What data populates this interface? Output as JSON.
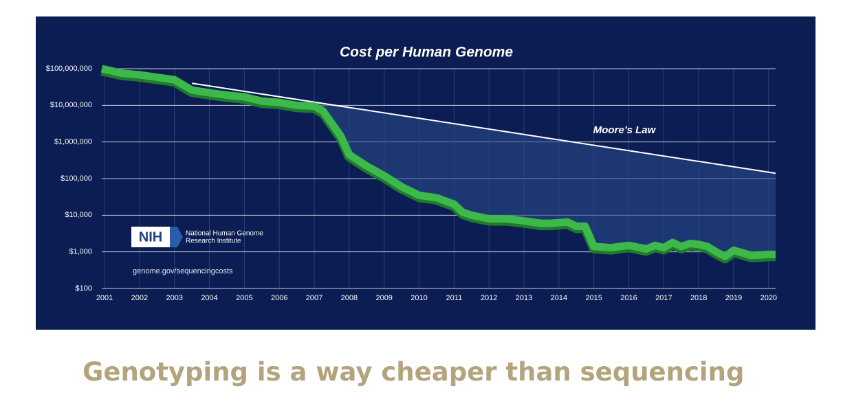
{
  "chart_data": {
    "type": "line",
    "title": "Cost per Human Genome",
    "log_scale": true,
    "grid": true,
    "background": "#0b1d52",
    "xlim": [
      2000.92,
      2020.2
    ],
    "xticks": [
      2001,
      2002,
      2003,
      2004,
      2005,
      2006,
      2007,
      2008,
      2009,
      2010,
      2011,
      2012,
      2013,
      2014,
      2015,
      2016,
      2017,
      2018,
      2019,
      2020
    ],
    "ylim": [
      100,
      100000000
    ],
    "yticks": [
      {
        "value": 100,
        "label": "$100"
      },
      {
        "value": 1000,
        "label": "$1,000"
      },
      {
        "value": 10000,
        "label": "$10,000"
      },
      {
        "value": 100000,
        "label": "$100,000"
      },
      {
        "value": 1000000,
        "label": "$1,000,000"
      },
      {
        "value": 10000000,
        "label": "$10,000,000"
      },
      {
        "value": 100000000,
        "label": "$100,000,000"
      }
    ],
    "series": [
      {
        "name": "Cost per Human Genome",
        "color": "#3cb94a",
        "x": [
          2000.92,
          2001.5,
          2002.0,
          2002.5,
          2003.0,
          2003.5,
          2004.0,
          2004.5,
          2005.0,
          2005.5,
          2006.0,
          2006.5,
          2007.0,
          2007.25,
          2007.75,
          2008.0,
          2008.5,
          2009.0,
          2009.5,
          2010.0,
          2010.5,
          2011.0,
          2011.25,
          2011.5,
          2012.0,
          2012.5,
          2013.0,
          2013.5,
          2013.75,
          2014.25,
          2014.5,
          2014.75,
          2015.0,
          2015.5,
          2016.0,
          2016.5,
          2016.75,
          2017.0,
          2017.25,
          2017.5,
          2017.75,
          2018.0,
          2018.25,
          2018.5,
          2018.75,
          2019.0,
          2019.5,
          2020.0,
          2020.2
        ],
        "values": [
          100000000,
          75000000,
          68000000,
          58000000,
          50000000,
          26000000,
          22000000,
          19000000,
          17000000,
          13000000,
          12000000,
          10000000,
          9500000,
          7000000,
          1500000,
          450000,
          220000,
          120000,
          60000,
          35000,
          30000,
          20000,
          12000,
          10000,
          8000,
          8000,
          7000,
          6000,
          6000,
          6500,
          5000,
          5000,
          1400,
          1300,
          1500,
          1200,
          1500,
          1300,
          1800,
          1400,
          1700,
          1600,
          1400,
          1000,
          750,
          1100,
          800,
          850,
          850
        ]
      },
      {
        "name": "Moore's Law",
        "color": "#ffffff",
        "x": [
          2003.5,
          2020.2
        ],
        "values": [
          40000000,
          140000
        ]
      }
    ],
    "annotations": [
      "Moore’s Law",
      "NIH",
      "National Human Genome",
      "Research Institute",
      "genome.gov/sequencingcosts"
    ]
  },
  "caption": "Genotyping is a way cheaper than sequencing"
}
